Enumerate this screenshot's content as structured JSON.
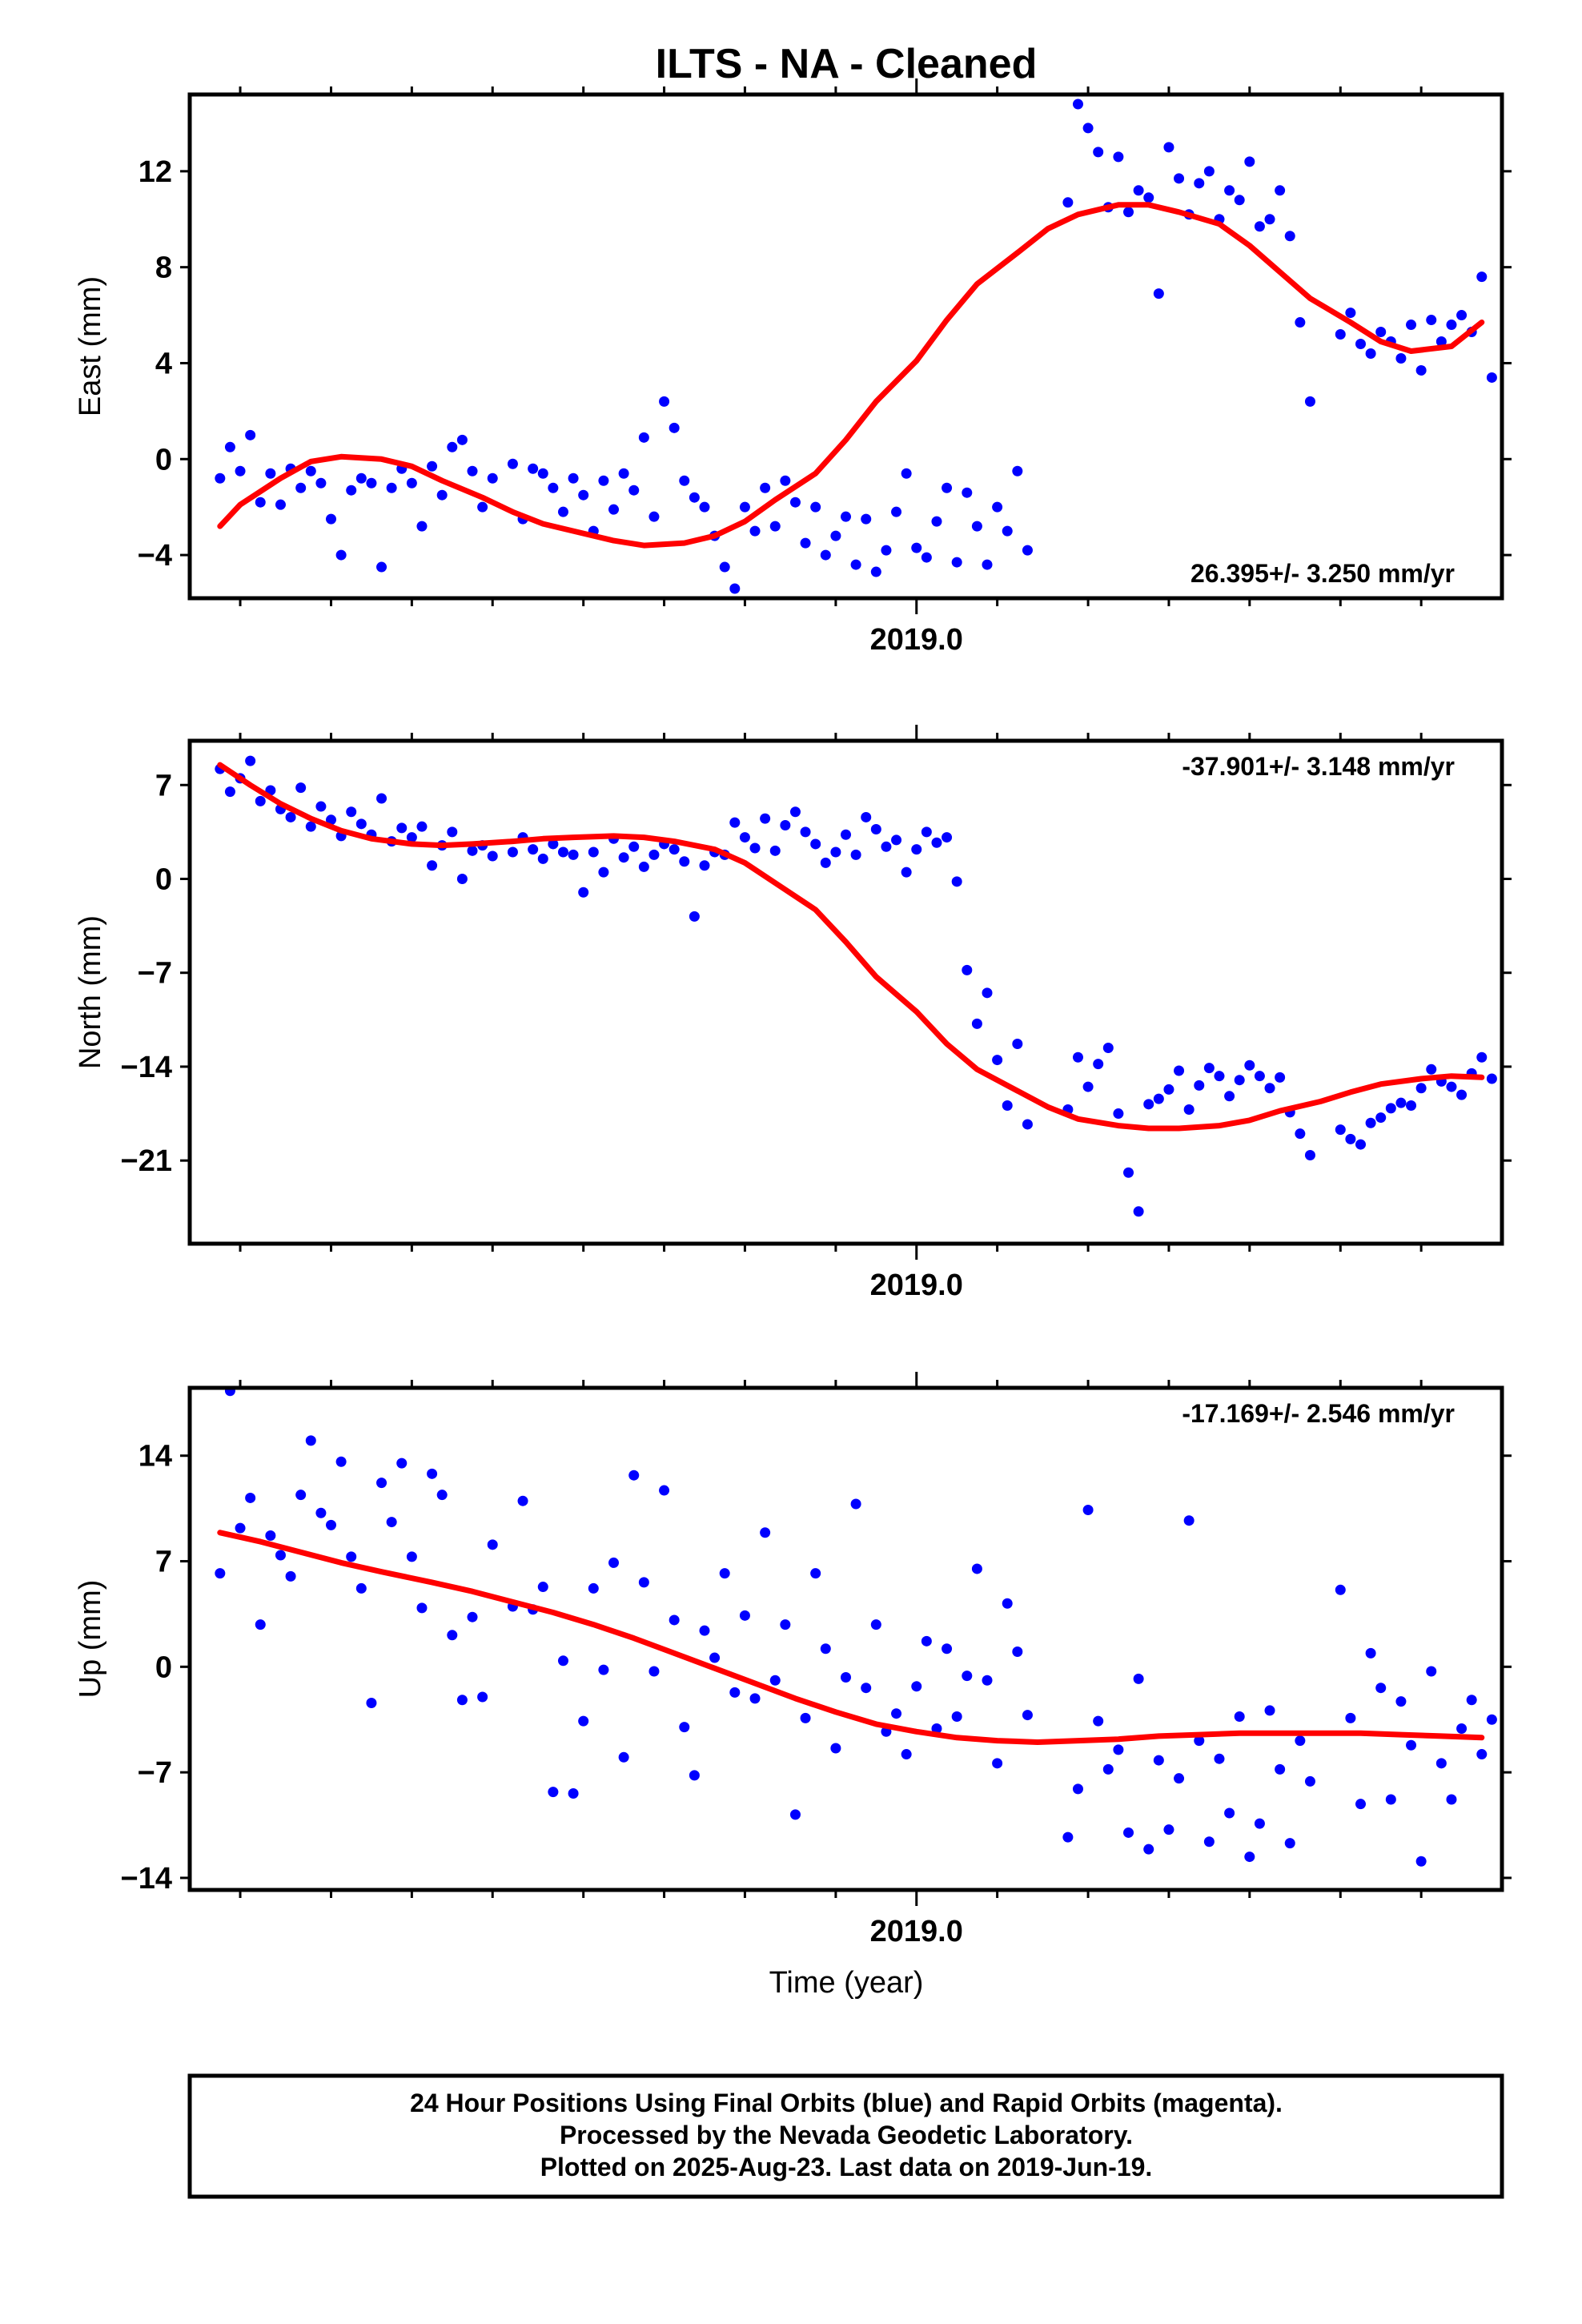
{
  "title": "ILTS  - NA - Cleaned",
  "xlabel": "Time (year)",
  "caption_lines": [
    "24 Hour Positions Using Final Orbits (blue) and Rapid Orbits (magenta).",
    "Processed by the Nevada Geodetic Laboratory.",
    "Plotted on 2025-Aug-23. Last data on 2019-Jun-19."
  ],
  "colors": {
    "points": "#0000ff",
    "model": "#ff0000",
    "frame": "#000000"
  },
  "chart_data": [
    {
      "type": "scatter",
      "ylabel": "East (mm)",
      "rate_label": "26.395+/- 3.250 mm/yr",
      "xlim": [
        2018.28,
        2019.58
      ],
      "ylim": [
        -5.8,
        15.2
      ],
      "y_ticks": [
        -4,
        0,
        4,
        8,
        12
      ],
      "x_tick_labels": [
        {
          "value": 2019.0,
          "label": "2019.0"
        }
      ],
      "model": {
        "x": [
          2018.31,
          2018.33,
          2018.37,
          2018.4,
          2018.43,
          2018.47,
          2018.5,
          2018.53,
          2018.57,
          2018.6,
          2018.63,
          2018.67,
          2018.7,
          2018.73,
          2018.77,
          2018.8,
          2018.83,
          2018.86,
          2018.9,
          2018.93,
          2018.96,
          2019.0,
          2019.03,
          2019.06,
          2019.1,
          2019.13,
          2019.16,
          2019.2,
          2019.23,
          2019.26,
          2019.3,
          2019.33,
          2019.36,
          2019.39,
          2019.43,
          2019.46,
          2019.49,
          2019.53,
          2019.56
        ],
        "values": [
          -2.8,
          -1.9,
          -0.8,
          -0.1,
          0.1,
          0.0,
          -0.3,
          -0.9,
          -1.6,
          -2.2,
          -2.7,
          -3.1,
          -3.4,
          -3.6,
          -3.5,
          -3.2,
          -2.6,
          -1.7,
          -0.6,
          0.8,
          2.4,
          4.1,
          5.8,
          7.3,
          8.6,
          9.6,
          10.2,
          10.6,
          10.6,
          10.3,
          9.8,
          8.9,
          7.8,
          6.7,
          5.7,
          4.9,
          4.5,
          4.7,
          5.7
        ]
      },
      "points": {
        "x": [
          2018.31,
          2018.32,
          2018.33,
          2018.34,
          2018.35,
          2018.36,
          2018.37,
          2018.38,
          2018.39,
          2018.4,
          2018.41,
          2018.42,
          2018.43,
          2018.44,
          2018.45,
          2018.46,
          2018.47,
          2018.48,
          2018.49,
          2018.5,
          2018.51,
          2018.52,
          2018.53,
          2018.54,
          2018.55,
          2018.56,
          2018.57,
          2018.58,
          2018.6,
          2018.61,
          2018.62,
          2018.63,
          2018.64,
          2018.65,
          2018.66,
          2018.67,
          2018.68,
          2018.69,
          2018.7,
          2018.71,
          2018.72,
          2018.73,
          2018.74,
          2018.75,
          2018.76,
          2018.77,
          2018.78,
          2018.79,
          2018.8,
          2018.81,
          2018.82,
          2018.83,
          2018.84,
          2018.85,
          2018.86,
          2018.87,
          2018.88,
          2018.89,
          2018.9,
          2018.91,
          2018.92,
          2018.93,
          2018.94,
          2018.95,
          2018.96,
          2018.97,
          2018.98,
          2018.99,
          2019.0,
          2019.01,
          2019.02,
          2019.03,
          2019.04,
          2019.05,
          2019.06,
          2019.07,
          2019.08,
          2019.09,
          2019.1,
          2019.11,
          2019.15,
          2019.16,
          2019.17,
          2019.18,
          2019.19,
          2019.2,
          2019.21,
          2019.22,
          2019.23,
          2019.24,
          2019.25,
          2019.26,
          2019.27,
          2019.28,
          2019.29,
          2019.3,
          2019.31,
          2019.32,
          2019.33,
          2019.34,
          2019.35,
          2019.36,
          2019.37,
          2019.38,
          2019.39,
          2019.42,
          2019.43,
          2019.44,
          2019.45,
          2019.46,
          2019.47,
          2019.48,
          2019.49,
          2019.5,
          2019.51,
          2019.52,
          2019.53,
          2019.54,
          2019.55,
          2019.56,
          2019.57
        ],
        "y": [
          -0.8,
          0.5,
          -0.5,
          1.0,
          -1.8,
          -0.6,
          -1.9,
          -0.4,
          -1.2,
          -0.5,
          -1.0,
          -2.5,
          -4.0,
          -1.3,
          -0.8,
          -1.0,
          -4.5,
          -1.2,
          -0.4,
          -1.0,
          -2.8,
          -0.3,
          -1.5,
          0.5,
          0.8,
          -0.5,
          -2.0,
          -0.8,
          -0.2,
          -2.5,
          -0.4,
          -0.6,
          -1.2,
          -2.2,
          -0.8,
          -1.5,
          -3.0,
          -0.9,
          -2.1,
          -0.6,
          -1.3,
          0.9,
          -2.4,
          2.4,
          1.3,
          -0.9,
          -1.6,
          -2.0,
          -3.2,
          -4.5,
          -5.4,
          -2.0,
          -3.0,
          -1.2,
          -2.8,
          -0.9,
          -1.8,
          -3.5,
          -2.0,
          -4.0,
          -3.2,
          -2.4,
          -4.4,
          -2.5,
          -4.7,
          -3.8,
          -2.2,
          -0.6,
          -3.7,
          -4.1,
          -2.6,
          -1.2,
          -4.3,
          -1.4,
          -2.8,
          -4.4,
          -2.0,
          -3.0,
          -0.5,
          -3.8,
          10.7,
          14.8,
          13.8,
          12.8,
          10.5,
          12.6,
          10.3,
          11.2,
          10.9,
          6.9,
          13.0,
          11.7,
          10.2,
          11.5,
          12.0,
          10.0,
          11.2,
          10.8,
          12.4,
          9.7,
          10.0,
          11.2,
          9.3,
          5.7,
          2.4,
          5.2,
          6.1,
          4.8,
          4.4,
          5.3,
          4.9,
          4.2,
          5.6,
          3.7,
          5.8,
          4.9,
          5.6,
          6.0,
          5.3,
          7.6,
          3.4
        ]
      }
    },
    {
      "type": "scatter",
      "ylabel": "North (mm)",
      "rate_label": "-37.901+/- 3.148 mm/yr",
      "xlim": [
        2018.28,
        2019.58
      ],
      "ylim": [
        -27.2,
        10.3
      ],
      "y_ticks": [
        -21,
        -14,
        -7,
        0,
        7
      ],
      "x_tick_labels": [
        {
          "value": 2019.0,
          "label": "2019.0"
        }
      ],
      "model": {
        "x": [
          2018.31,
          2018.34,
          2018.37,
          2018.4,
          2018.43,
          2018.46,
          2018.5,
          2018.53,
          2018.56,
          2018.6,
          2018.63,
          2018.66,
          2018.7,
          2018.73,
          2018.76,
          2018.8,
          2018.83,
          2018.86,
          2018.9,
          2018.93,
          2018.96,
          2019.0,
          2019.03,
          2019.06,
          2019.1,
          2019.13,
          2019.16,
          2019.2,
          2019.23,
          2019.26,
          2019.3,
          2019.33,
          2019.36,
          2019.4,
          2019.43,
          2019.46,
          2019.5,
          2019.53,
          2019.56
        ],
        "values": [
          8.5,
          7.0,
          5.6,
          4.5,
          3.6,
          3.0,
          2.6,
          2.5,
          2.6,
          2.8,
          3.0,
          3.1,
          3.2,
          3.1,
          2.8,
          2.2,
          1.2,
          -0.3,
          -2.3,
          -4.7,
          -7.3,
          -9.9,
          -12.3,
          -14.2,
          -15.8,
          -17.0,
          -17.9,
          -18.4,
          -18.6,
          -18.6,
          -18.4,
          -18.0,
          -17.3,
          -16.6,
          -15.9,
          -15.3,
          -14.9,
          -14.7,
          -14.8
        ]
      },
      "points": {
        "x": [
          2018.31,
          2018.32,
          2018.33,
          2018.34,
          2018.35,
          2018.36,
          2018.37,
          2018.38,
          2018.39,
          2018.4,
          2018.41,
          2018.42,
          2018.43,
          2018.44,
          2018.45,
          2018.46,
          2018.47,
          2018.48,
          2018.49,
          2018.5,
          2018.51,
          2018.52,
          2018.53,
          2018.54,
          2018.55,
          2018.56,
          2018.57,
          2018.58,
          2018.6,
          2018.61,
          2018.62,
          2018.63,
          2018.64,
          2018.65,
          2018.66,
          2018.67,
          2018.68,
          2018.69,
          2018.7,
          2018.71,
          2018.72,
          2018.73,
          2018.74,
          2018.75,
          2018.76,
          2018.77,
          2018.78,
          2018.79,
          2018.8,
          2018.81,
          2018.82,
          2018.83,
          2018.84,
          2018.85,
          2018.86,
          2018.87,
          2018.88,
          2018.89,
          2018.9,
          2018.91,
          2018.92,
          2018.93,
          2018.94,
          2018.95,
          2018.96,
          2018.97,
          2018.98,
          2018.99,
          2019.0,
          2019.01,
          2019.02,
          2019.03,
          2019.04,
          2019.05,
          2019.06,
          2019.07,
          2019.08,
          2019.09,
          2019.1,
          2019.11,
          2019.15,
          2019.16,
          2019.17,
          2019.18,
          2019.19,
          2019.2,
          2019.21,
          2019.22,
          2019.23,
          2019.24,
          2019.25,
          2019.26,
          2019.27,
          2019.28,
          2019.29,
          2019.3,
          2019.31,
          2019.32,
          2019.33,
          2019.34,
          2019.35,
          2019.36,
          2019.37,
          2019.38,
          2019.39,
          2019.42,
          2019.43,
          2019.44,
          2019.45,
          2019.46,
          2019.47,
          2019.48,
          2019.49,
          2019.5,
          2019.51,
          2019.52,
          2019.53,
          2019.54,
          2019.55,
          2019.56,
          2019.57
        ],
        "y": [
          8.2,
          6.5,
          7.5,
          8.8,
          5.8,
          6.6,
          5.2,
          4.6,
          6.8,
          3.9,
          5.4,
          4.4,
          3.2,
          5.0,
          4.1,
          3.3,
          6.0,
          2.8,
          3.8,
          3.1,
          3.9,
          1.0,
          2.5,
          3.5,
          0.0,
          2.1,
          2.5,
          1.7,
          2.0,
          3.1,
          2.2,
          1.5,
          2.6,
          2.0,
          1.8,
          -1.0,
          2.0,
          0.5,
          3.0,
          1.6,
          2.4,
          0.9,
          1.8,
          2.6,
          2.2,
          1.3,
          -2.8,
          1.0,
          2.0,
          1.8,
          4.2,
          3.1,
          2.3,
          4.5,
          2.1,
          4.0,
          5.0,
          3.5,
          2.6,
          1.2,
          2.0,
          3.3,
          1.8,
          4.6,
          3.7,
          2.4,
          2.9,
          0.5,
          2.2,
          3.5,
          2.7,
          3.1,
          -0.2,
          -6.8,
          -10.8,
          -8.5,
          -13.5,
          -16.9,
          -12.3,
          -18.3,
          -17.2,
          -13.3,
          -15.5,
          -13.8,
          -12.6,
          -17.5,
          -21.9,
          -24.8,
          -16.8,
          -16.4,
          -15.7,
          -14.3,
          -17.2,
          -15.4,
          -14.1,
          -14.7,
          -16.2,
          -15.0,
          -13.9,
          -14.7,
          -15.6,
          -14.8,
          -17.4,
          -19.0,
          -20.6,
          -18.7,
          -19.4,
          -19.8,
          -18.2,
          -17.8,
          -17.1,
          -16.7,
          -16.9,
          -15.6,
          -14.2,
          -15.1,
          -15.5,
          -16.1,
          -14.5,
          -13.3,
          -14.9
        ]
      }
    },
    {
      "type": "scatter",
      "ylabel": "Up (mm)",
      "rate_label": "-17.169+/- 2.546 mm/yr",
      "xlim": [
        2018.28,
        2019.58
      ],
      "ylim": [
        -14.8,
        18.5
      ],
      "y_ticks": [
        -14,
        -7,
        0,
        7,
        14
      ],
      "x_tick_labels": [
        {
          "value": 2019.0,
          "label": "2019.0"
        }
      ],
      "model": {
        "x": [
          2018.31,
          2018.35,
          2018.39,
          2018.43,
          2018.47,
          2018.52,
          2018.56,
          2018.6,
          2018.64,
          2018.68,
          2018.72,
          2018.76,
          2018.8,
          2018.84,
          2018.88,
          2018.92,
          2018.96,
          2019.0,
          2019.04,
          2019.08,
          2019.12,
          2019.16,
          2019.2,
          2019.24,
          2019.28,
          2019.32,
          2019.36,
          2019.4,
          2019.44,
          2019.48,
          2019.52,
          2019.56
        ],
        "values": [
          8.9,
          8.3,
          7.6,
          6.9,
          6.3,
          5.6,
          5.0,
          4.3,
          3.6,
          2.8,
          1.9,
          0.9,
          -0.1,
          -1.1,
          -2.1,
          -3.0,
          -3.8,
          -4.3,
          -4.7,
          -4.9,
          -5.0,
          -4.9,
          -4.8,
          -4.6,
          -4.5,
          -4.4,
          -4.4,
          -4.4,
          -4.4,
          -4.5,
          -4.6,
          -4.7
        ]
      },
      "points": {
        "x": [
          2018.31,
          2018.32,
          2018.33,
          2018.34,
          2018.35,
          2018.36,
          2018.37,
          2018.38,
          2018.39,
          2018.4,
          2018.41,
          2018.42,
          2018.43,
          2018.44,
          2018.45,
          2018.46,
          2018.47,
          2018.48,
          2018.49,
          2018.5,
          2018.51,
          2018.52,
          2018.53,
          2018.54,
          2018.55,
          2018.56,
          2018.57,
          2018.58,
          2018.6,
          2018.61,
          2018.62,
          2018.63,
          2018.64,
          2018.65,
          2018.66,
          2018.67,
          2018.68,
          2018.69,
          2018.7,
          2018.71,
          2018.72,
          2018.73,
          2018.74,
          2018.75,
          2018.76,
          2018.77,
          2018.78,
          2018.79,
          2018.8,
          2018.81,
          2018.82,
          2018.83,
          2018.84,
          2018.85,
          2018.86,
          2018.87,
          2018.88,
          2018.89,
          2018.9,
          2018.91,
          2018.92,
          2018.93,
          2018.94,
          2018.95,
          2018.96,
          2018.97,
          2018.98,
          2018.99,
          2019.0,
          2019.01,
          2019.02,
          2019.03,
          2019.04,
          2019.05,
          2019.06,
          2019.07,
          2019.08,
          2019.09,
          2019.1,
          2019.11,
          2019.15,
          2019.16,
          2019.17,
          2019.18,
          2019.19,
          2019.2,
          2019.21,
          2019.22,
          2019.23,
          2019.24,
          2019.25,
          2019.26,
          2019.27,
          2019.28,
          2019.29,
          2019.3,
          2019.31,
          2019.32,
          2019.33,
          2019.34,
          2019.35,
          2019.36,
          2019.37,
          2019.38,
          2019.39,
          2019.42,
          2019.43,
          2019.44,
          2019.45,
          2019.46,
          2019.47,
          2019.48,
          2019.49,
          2019.5,
          2019.51,
          2019.52,
          2019.53,
          2019.54,
          2019.55,
          2019.56,
          2019.57
        ],
        "y": [
          6.2,
          18.3,
          9.2,
          11.2,
          2.8,
          8.7,
          7.4,
          6.0,
          11.4,
          15.0,
          10.2,
          9.4,
          13.6,
          7.3,
          5.2,
          -2.4,
          12.2,
          9.6,
          13.5,
          7.3,
          3.9,
          12.8,
          11.4,
          2.1,
          -2.2,
          3.3,
          -2.0,
          8.1,
          4.0,
          11.0,
          3.8,
          5.3,
          -8.3,
          0.4,
          -8.4,
          -3.6,
          5.2,
          -0.2,
          6.9,
          -6.0,
          12.7,
          5.6,
          -0.3,
          11.7,
          3.1,
          -4.0,
          -7.2,
          2.4,
          0.6,
          6.2,
          -1.7,
          3.4,
          -2.1,
          8.9,
          -0.9,
          2.8,
          -9.8,
          -3.4,
          6.2,
          1.2,
          -5.4,
          -0.7,
          10.8,
          -1.4,
          2.8,
          -4.3,
          -3.1,
          -5.8,
          -1.3,
          1.7,
          -4.1,
          1.2,
          -3.3,
          -0.6,
          6.5,
          -0.9,
          -6.4,
          4.2,
          1.0,
          -3.2,
          -11.3,
          -8.1,
          10.4,
          -3.6,
          -6.8,
          -5.5,
          -11.0,
          -0.8,
          -12.1,
          -6.2,
          -10.8,
          -7.4,
          9.7,
          -4.9,
          -11.6,
          -6.1,
          -9.7,
          -3.3,
          -12.6,
          -10.4,
          -2.9,
          -6.8,
          -11.7,
          -4.9,
          -7.6,
          5.1,
          -3.4,
          -9.1,
          0.9,
          -1.4,
          -8.8,
          -2.3,
          -5.2,
          -12.9,
          -0.3,
          -6.4,
          -8.8,
          -4.1,
          -2.2,
          -5.8,
          -3.5
        ]
      }
    }
  ]
}
